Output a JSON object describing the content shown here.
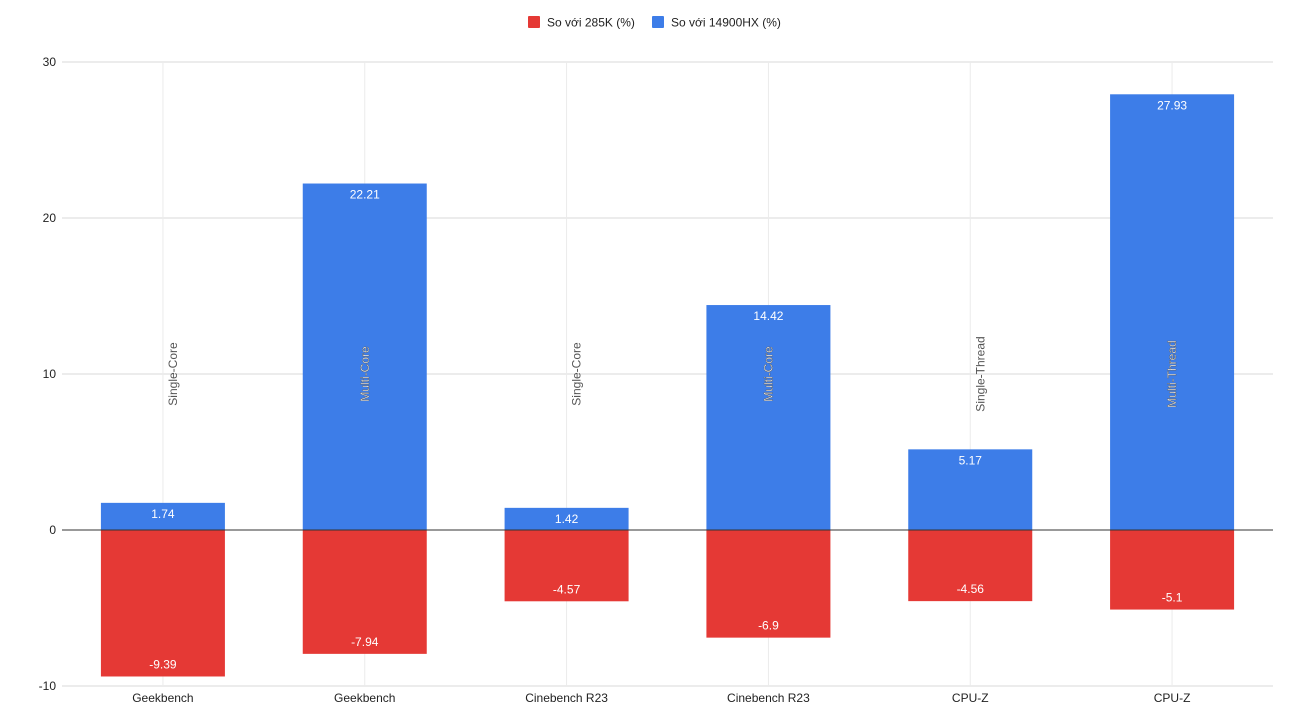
{
  "colors": {
    "series_285k": "#e53935",
    "series_14900hx": "#3d7de8",
    "grid": "#d9d9d9",
    "zero_line": "#333333"
  },
  "chart_data": {
    "type": "bar",
    "stacked": true,
    "title": "",
    "xlabel": "",
    "ylabel": "",
    "ylim": [
      -10,
      30
    ],
    "yticks": [
      -10,
      0,
      10,
      20,
      30
    ],
    "grid": true,
    "legend_position": "top-center",
    "categories": [
      "Geekbench",
      "Geekbench",
      "Cinebench R23",
      "Cinebench R23",
      "CPU-Z",
      "CPU-Z"
    ],
    "sub_labels": [
      "Single-Core",
      "Multi-Core",
      "Single-Core",
      "Multi-Core",
      "Single-Thread",
      "Multi-Thread"
    ],
    "series": [
      {
        "name": "So với 285K (%)",
        "values": [
          -9.39,
          -7.94,
          -4.57,
          -6.9,
          -4.56,
          -5.1
        ]
      },
      {
        "name": "So với 14900HX (%)",
        "values": [
          1.74,
          22.21,
          1.42,
          14.42,
          5.17,
          27.93
        ]
      }
    ]
  }
}
